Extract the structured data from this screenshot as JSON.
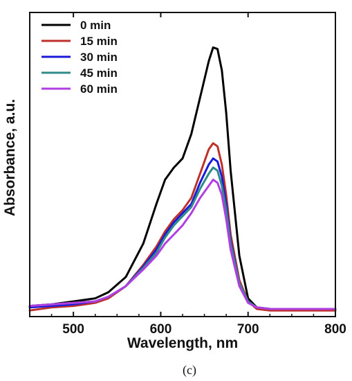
{
  "chart_data": {
    "type": "line",
    "xlabel": "Wavelength, nm",
    "ylabel": "Absorbance, a.u.",
    "caption": "(c)",
    "xlim": [
      450,
      800
    ],
    "ylim": [
      0,
      1
    ],
    "x_ticks": [
      500,
      600,
      700,
      800
    ],
    "y_ticks_labeled": false,
    "legend_position": "top-left",
    "x": [
      450,
      475,
      500,
      525,
      540,
      560,
      580,
      595,
      605,
      615,
      625,
      635,
      645,
      655,
      660,
      665,
      670,
      675,
      680,
      690,
      700,
      710,
      725,
      750,
      775,
      800
    ],
    "series": [
      {
        "name": "0 min",
        "color": "#000000",
        "values": [
          0.035,
          0.04,
          0.05,
          0.06,
          0.08,
          0.13,
          0.24,
          0.37,
          0.45,
          0.49,
          0.52,
          0.6,
          0.72,
          0.84,
          0.885,
          0.88,
          0.81,
          0.67,
          0.48,
          0.2,
          0.06,
          0.03,
          0.025,
          0.025,
          0.025,
          0.025
        ]
      },
      {
        "name": "15 min",
        "color": "#c0302a",
        "values": [
          0.02,
          0.03,
          0.035,
          0.045,
          0.06,
          0.1,
          0.17,
          0.23,
          0.28,
          0.32,
          0.35,
          0.39,
          0.47,
          0.55,
          0.57,
          0.56,
          0.5,
          0.4,
          0.27,
          0.12,
          0.05,
          0.025,
          0.02,
          0.02,
          0.02,
          0.02
        ]
      },
      {
        "name": "30 min",
        "color": "#1a1ad8",
        "values": [
          0.03,
          0.035,
          0.04,
          0.05,
          0.065,
          0.1,
          0.165,
          0.22,
          0.27,
          0.31,
          0.34,
          0.37,
          0.44,
          0.5,
          0.52,
          0.51,
          0.46,
          0.37,
          0.25,
          0.11,
          0.05,
          0.03,
          0.025,
          0.025,
          0.025,
          0.025
        ]
      },
      {
        "name": "45 min",
        "color": "#2f8a8a",
        "values": [
          0.035,
          0.04,
          0.045,
          0.05,
          0.065,
          0.1,
          0.16,
          0.21,
          0.26,
          0.3,
          0.33,
          0.36,
          0.42,
          0.47,
          0.49,
          0.48,
          0.43,
          0.35,
          0.24,
          0.11,
          0.05,
          0.03,
          0.025,
          0.025,
          0.025,
          0.025
        ]
      },
      {
        "name": "60 min",
        "color": "#b03ee0",
        "values": [
          0.035,
          0.04,
          0.045,
          0.05,
          0.065,
          0.1,
          0.155,
          0.2,
          0.24,
          0.27,
          0.3,
          0.34,
          0.39,
          0.43,
          0.45,
          0.44,
          0.4,
          0.32,
          0.22,
          0.1,
          0.045,
          0.03,
          0.025,
          0.025,
          0.025,
          0.025
        ]
      }
    ]
  }
}
